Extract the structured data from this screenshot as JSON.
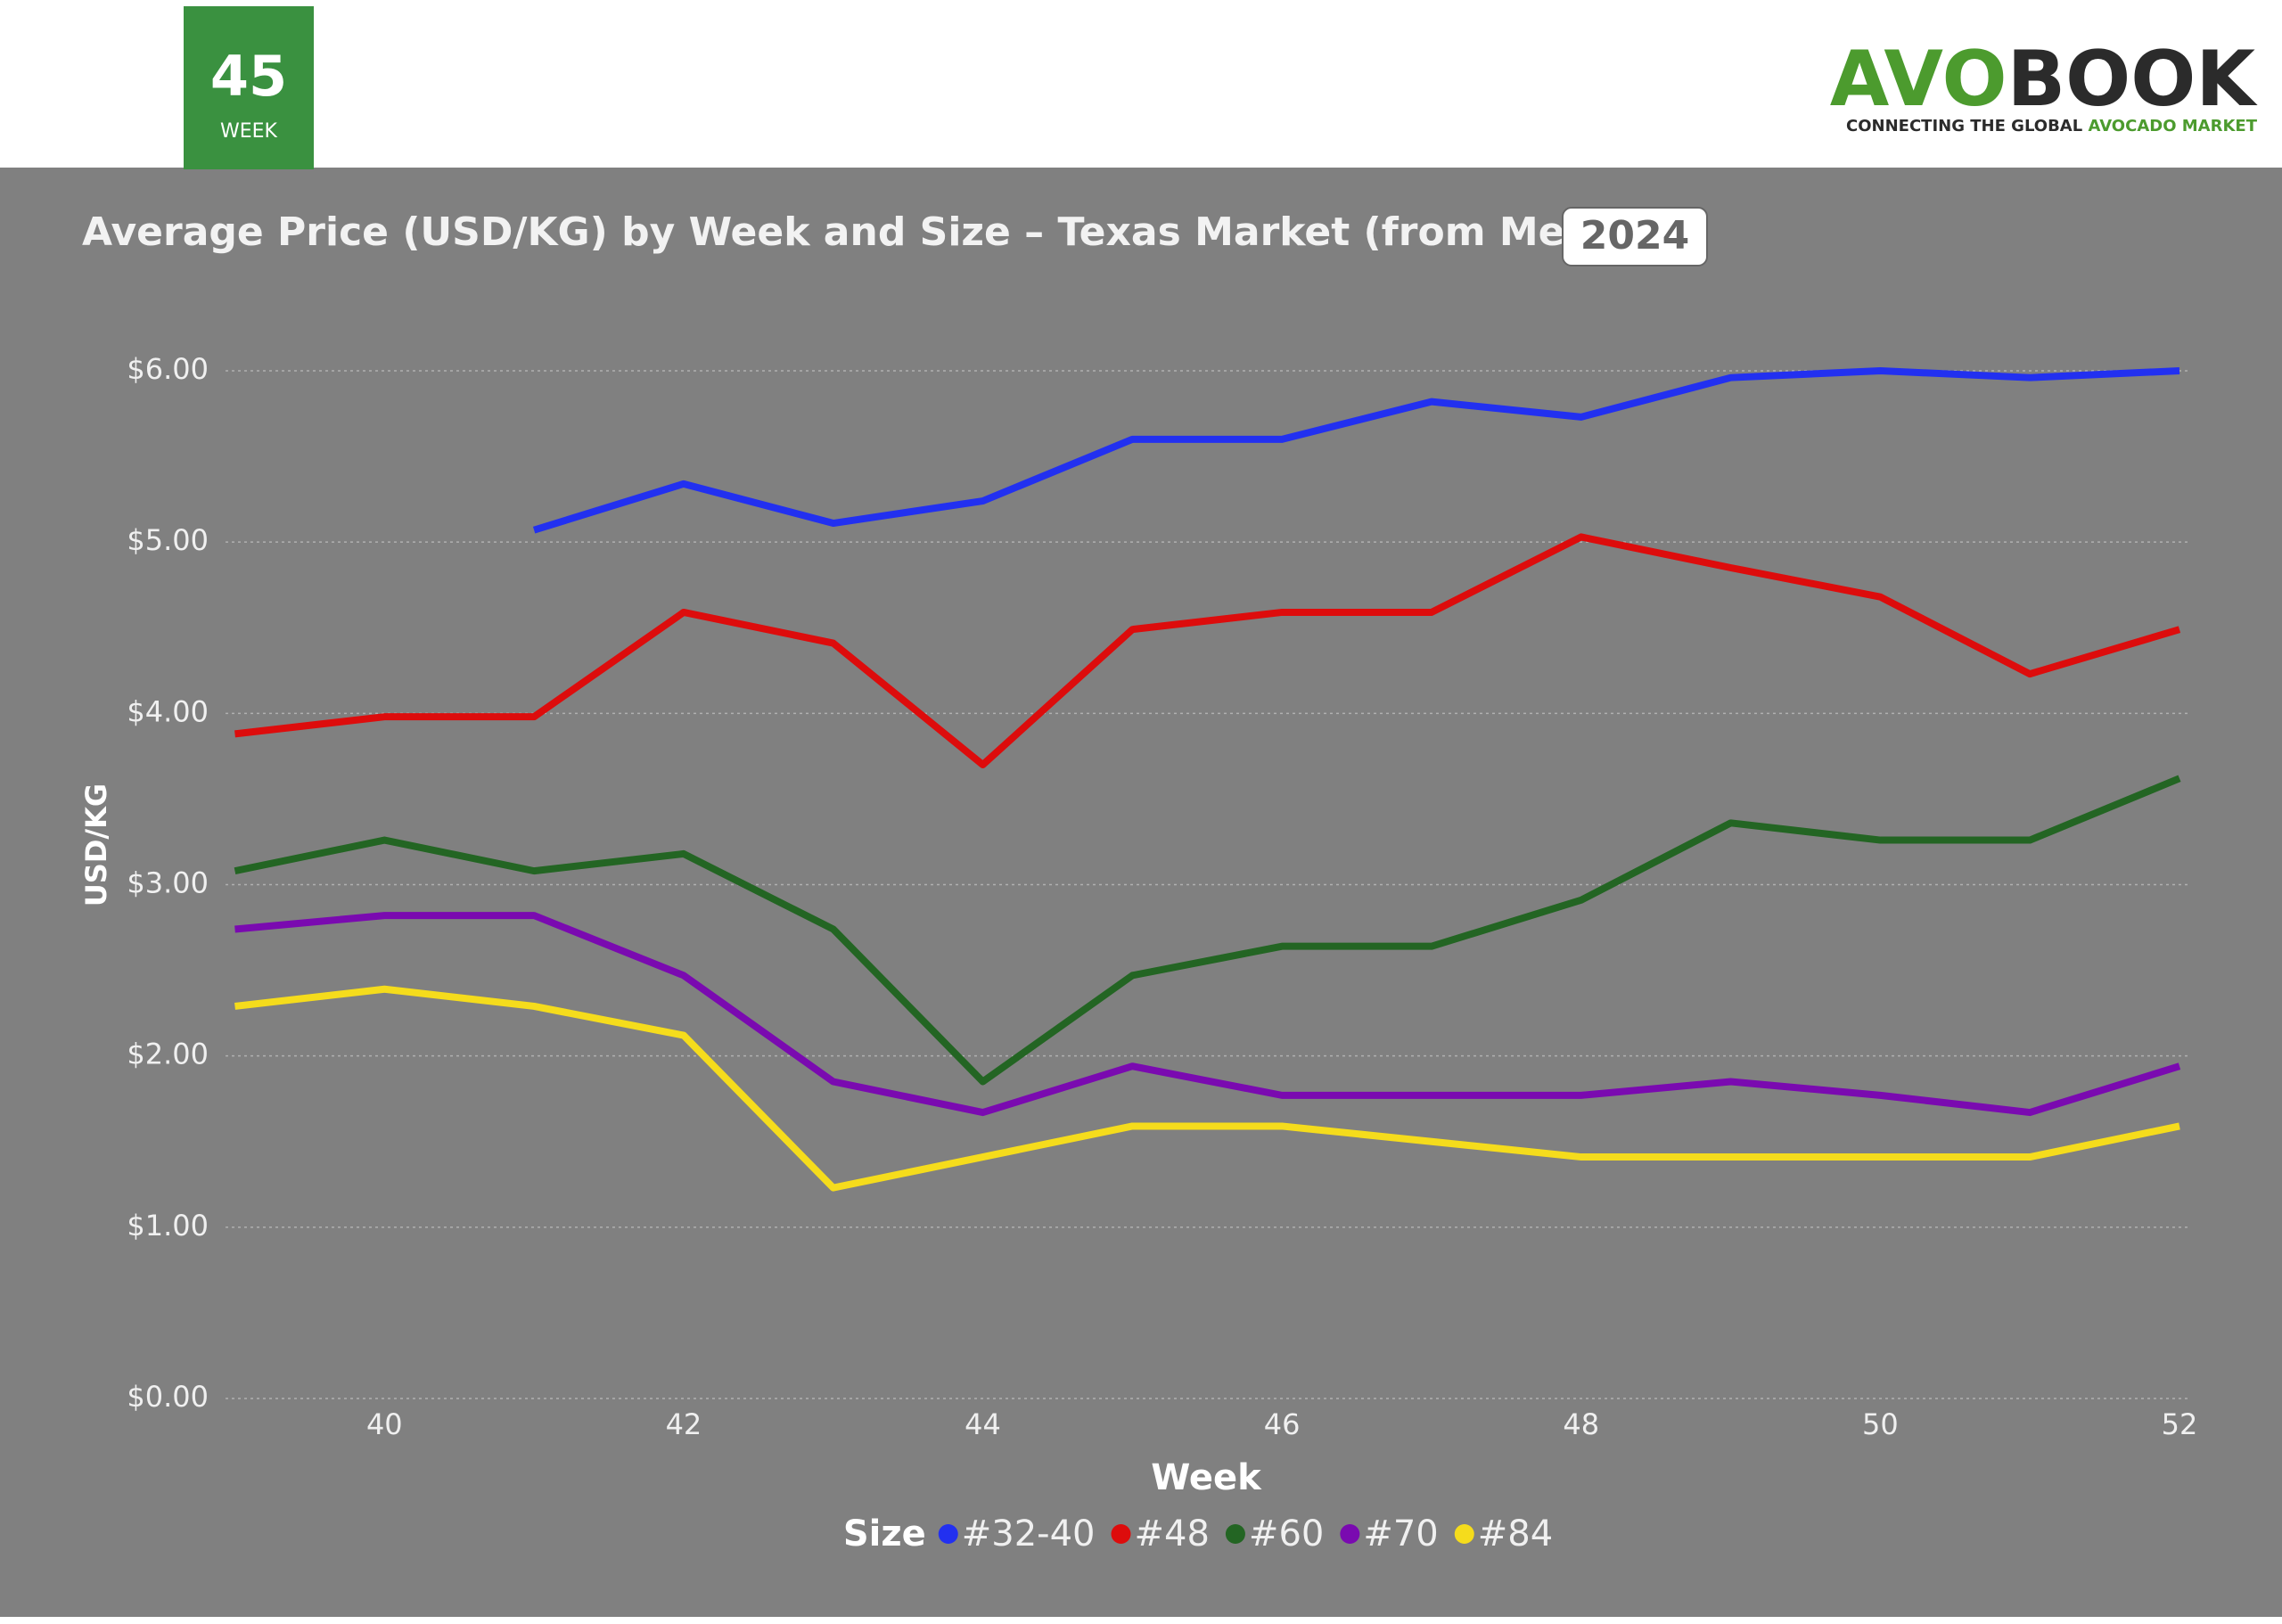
{
  "week_badge": {
    "number": "45",
    "label": "WEEK"
  },
  "logo": {
    "part1": "AVO",
    "part2": "BOOK",
    "tagline1": "CONNECTING THE GLOBAL",
    "tagline2": "AVOCADO MARKET"
  },
  "year_badge": "2024",
  "chart_data": {
    "type": "line",
    "title": "Average Price (USD/KG) by Week and Size – Texas Market (from Mexico)",
    "x_label": "Week",
    "y_label": "USD/KG",
    "legend_title": "Size",
    "x": [
      39,
      40,
      41,
      42,
      43,
      44,
      45,
      46,
      47,
      48,
      49,
      50,
      51,
      52
    ],
    "xlim": [
      39,
      52
    ],
    "xticks": [
      40,
      42,
      44,
      46,
      48,
      50,
      52
    ],
    "ylim": [
      0,
      6
    ],
    "yticks": [
      {
        "value": 0,
        "label": "$0.00"
      },
      {
        "value": 1,
        "label": "$1.00"
      },
      {
        "value": 2,
        "label": "$2.00"
      },
      {
        "value": 3,
        "label": "$3.00"
      },
      {
        "value": 4,
        "label": "$4.00"
      },
      {
        "value": 5,
        "label": "$5.00"
      },
      {
        "value": 6,
        "label": "$6.00"
      }
    ],
    "grid": true,
    "series": [
      {
        "name": "#32-40",
        "color": "#2230f0",
        "values": [
          null,
          null,
          5.07,
          5.34,
          5.11,
          5.24,
          5.6,
          5.6,
          5.82,
          5.73,
          5.96,
          6.0,
          5.96,
          6.0
        ]
      },
      {
        "name": "#48",
        "color": "#dd0c0c",
        "values": [
          3.88,
          3.98,
          3.98,
          4.59,
          4.41,
          3.7,
          4.49,
          4.59,
          4.59,
          5.03,
          4.85,
          4.68,
          4.23,
          4.49
        ]
      },
      {
        "name": "#60",
        "color": "#236523",
        "values": [
          3.08,
          3.26,
          3.08,
          3.18,
          2.74,
          1.85,
          2.47,
          2.64,
          2.64,
          2.91,
          3.36,
          3.26,
          3.26,
          3.62
        ]
      },
      {
        "name": "#70",
        "color": "#7a0ab0",
        "values": [
          2.74,
          2.82,
          2.82,
          2.47,
          1.85,
          1.67,
          1.94,
          1.77,
          1.77,
          1.77,
          1.85,
          1.77,
          1.67,
          1.94
        ]
      },
      {
        "name": "#84",
        "color": "#f5dc1c",
        "values": [
          2.29,
          2.39,
          2.29,
          2.12,
          1.23,
          1.41,
          1.59,
          1.59,
          1.5,
          1.41,
          1.41,
          1.41,
          1.41,
          1.59
        ]
      }
    ]
  }
}
